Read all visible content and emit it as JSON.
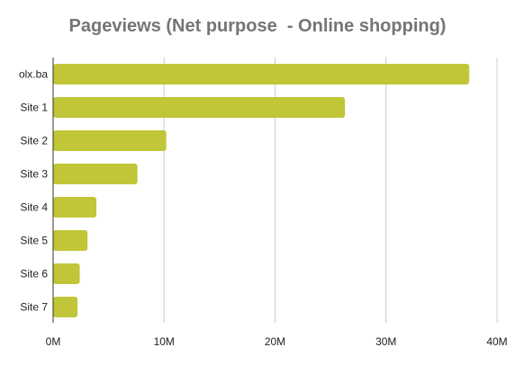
{
  "chart_data": {
    "type": "bar",
    "orientation": "horizontal",
    "title": "Pageviews (Net purpose  - Online shopping)",
    "xlabel": "",
    "ylabel": "",
    "categories": [
      "olx.ba",
      "Site 1",
      "Site 2",
      "Site 3",
      "Site 4",
      "Site 5",
      "Site 6",
      "Site 7"
    ],
    "values": [
      37500000,
      26300000,
      10200000,
      7600000,
      3900000,
      3100000,
      2400000,
      2200000
    ],
    "xlim": [
      0,
      40000000
    ],
    "x_ticks": [
      0,
      10000000,
      20000000,
      30000000,
      40000000
    ],
    "x_tick_labels": [
      "0M",
      "10M",
      "20M",
      "30M",
      "40M"
    ],
    "grid": "vertical",
    "legend": "none",
    "bar_color": "#c0c637",
    "title_color": "#757575"
  }
}
